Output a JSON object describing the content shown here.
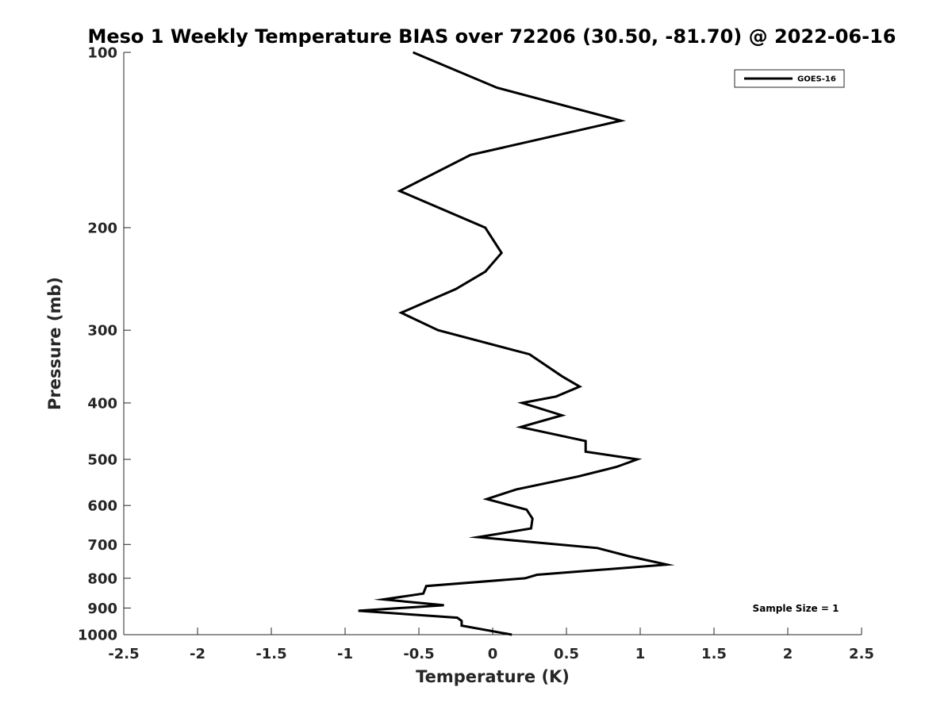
{
  "chart_data": {
    "type": "line",
    "title": "Meso 1 Weekly Temperature BIAS over 72206 (30.50, -81.70) @ 2022-06-16",
    "xlabel": "Temperature (K)",
    "ylabel": "Pressure (mb)",
    "x_ticks": [
      "-2.5",
      "-2",
      "-1.5",
      "-1",
      "-0.5",
      "0",
      "0.5",
      "1",
      "1.5",
      "2",
      "2.5"
    ],
    "y_ticks": [
      "100",
      "200",
      "300",
      "400",
      "500",
      "600",
      "700",
      "800",
      "900",
      "1000"
    ],
    "xlim": [
      -2.5,
      2.5
    ],
    "ylim": [
      100,
      1000
    ],
    "y_scale": "log",
    "y_reversed": true,
    "grid": false,
    "legend_position": "top-right",
    "annotation": "Sample Size = 1",
    "series": [
      {
        "name": "GOES-16",
        "color": "#000000",
        "points": [
          [
            -0.54,
            100
          ],
          [
            0.03,
            115
          ],
          [
            0.87,
            131
          ],
          [
            -0.15,
            150
          ],
          [
            -0.63,
            173
          ],
          [
            -0.05,
            200
          ],
          [
            0.06,
            221
          ],
          [
            -0.05,
            238
          ],
          [
            -0.25,
            255
          ],
          [
            -0.62,
            280
          ],
          [
            -0.37,
            300
          ],
          [
            0.25,
            330
          ],
          [
            0.47,
            360
          ],
          [
            0.59,
            375
          ],
          [
            0.43,
            390
          ],
          [
            0.2,
            400
          ],
          [
            0.47,
            420
          ],
          [
            0.19,
            440
          ],
          [
            0.63,
            465
          ],
          [
            0.63,
            485
          ],
          [
            0.98,
            500
          ],
          [
            0.84,
            515
          ],
          [
            0.58,
            535
          ],
          [
            0.16,
            563
          ],
          [
            -0.04,
            585
          ],
          [
            0.23,
            610
          ],
          [
            0.27,
            632
          ],
          [
            0.26,
            657
          ],
          [
            -0.1,
            680
          ],
          [
            0.71,
            710
          ],
          [
            0.92,
            733
          ],
          [
            1.18,
            758
          ],
          [
            0.3,
            789
          ],
          [
            0.22,
            800
          ],
          [
            -0.45,
            825
          ],
          [
            -0.47,
            850
          ],
          [
            -0.74,
            870
          ],
          [
            -0.33,
            890
          ],
          [
            -0.91,
            910
          ],
          [
            -0.24,
            935
          ],
          [
            -0.21,
            947
          ],
          [
            -0.21,
            965
          ],
          [
            0.13,
            1000
          ]
        ]
      }
    ]
  }
}
